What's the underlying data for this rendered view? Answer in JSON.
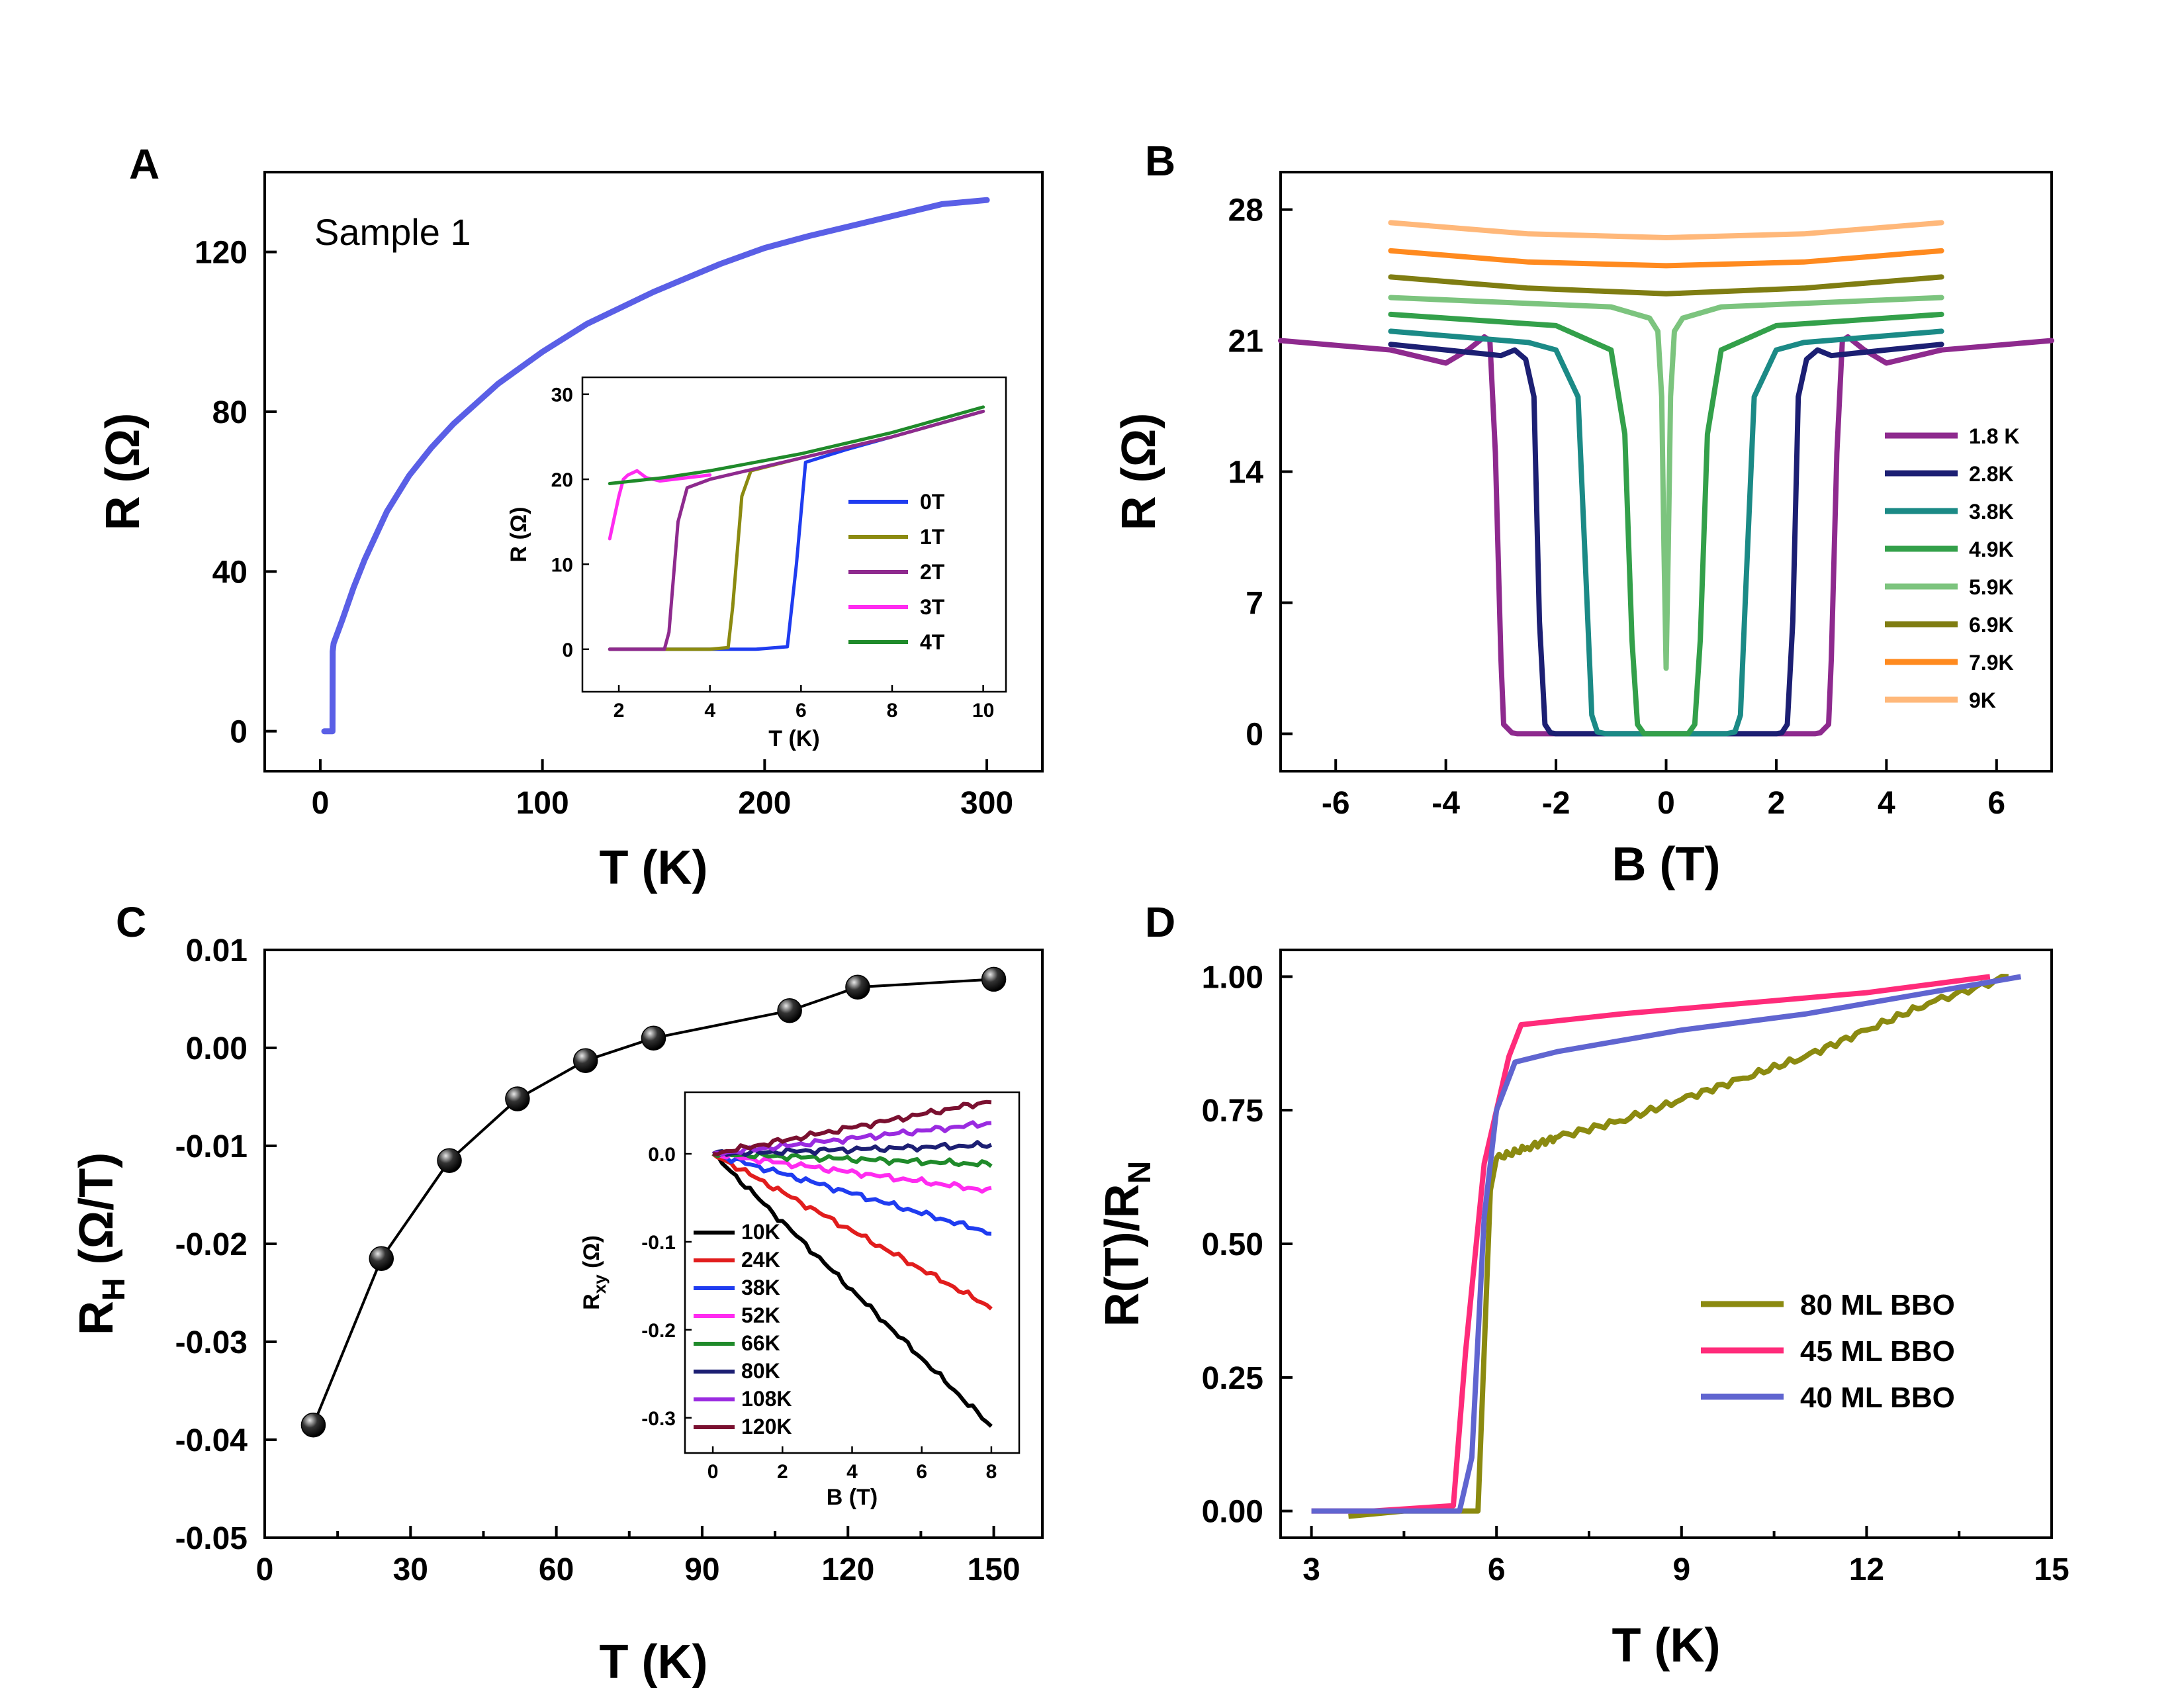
{
  "chart_data": [
    {
      "id": "A",
      "type": "line",
      "panel_label": "A",
      "annotation": "Sample 1",
      "xlabel": "T (K)",
      "ylabel": "R (Ω)",
      "xlim": [
        -25,
        325
      ],
      "ylim": [
        -10,
        140
      ],
      "xticks": [
        0,
        100,
        200,
        300
      ],
      "yticks": [
        0,
        40,
        80,
        120
      ],
      "series": [
        {
          "name": "Sample 1",
          "color": "#5a5fe6",
          "x": [
            1.8,
            5.5,
            5.6,
            6,
            10,
            15,
            20,
            30,
            40,
            50,
            60,
            80,
            100,
            120,
            150,
            180,
            200,
            220,
            250,
            280,
            300
          ],
          "y": [
            0,
            0,
            20,
            22,
            28,
            36,
            43,
            55,
            64,
            71,
            77,
            87,
            95,
            102,
            110,
            117,
            121,
            124,
            128,
            132,
            133
          ]
        }
      ],
      "inset": {
        "xlabel": "T (K)",
        "ylabel": "R (Ω)",
        "xlim": [
          1.2,
          10.5
        ],
        "ylim": [
          -5,
          32
        ],
        "xticks": [
          2,
          4,
          6,
          8,
          10
        ],
        "yticks": [
          0,
          10,
          20,
          30
        ],
        "series": [
          {
            "name": "0T",
            "color": "#1f3cf0",
            "x": [
              1.8,
              3,
              4,
              5,
              5.7,
              5.9,
              6.1,
              7,
              8,
              9,
              10
            ],
            "y": [
              0,
              0,
              0,
              0,
              0.3,
              10,
              22,
              23.5,
              25,
              26.5,
              28
            ]
          },
          {
            "name": "1T",
            "color": "#8b8a10",
            "x": [
              1.8,
              3,
              4,
              4.4,
              4.5,
              4.7,
              4.9,
              6,
              8,
              10
            ],
            "y": [
              0,
              0,
              0,
              0.2,
              5,
              18,
              21,
              22.5,
              25,
              28
            ]
          },
          {
            "name": "2T",
            "color": "#8e2a8e",
            "x": [
              1.8,
              2.5,
              3,
              3.1,
              3.3,
              3.5,
              4,
              6,
              8,
              10
            ],
            "y": [
              0,
              0,
              0,
              2,
              15,
              19,
              20,
              22.5,
              25,
              28
            ]
          },
          {
            "name": "3T",
            "color": "#ff2bf0",
            "x": [
              1.8,
              2.0,
              2.1,
              2.2,
              2.4,
              2.6,
              2.9,
              3.2,
              4
            ],
            "y": [
              13,
              18,
              20,
              20.5,
              21,
              20.2,
              19.8,
              20,
              20.5
            ]
          },
          {
            "name": "4T",
            "color": "#1f8a2a",
            "x": [
              1.8,
              3,
              4,
              6,
              8,
              10
            ],
            "y": [
              19.5,
              20.2,
              21,
              23,
              25.5,
              28.5
            ]
          }
        ]
      }
    },
    {
      "id": "B",
      "type": "line",
      "panel_label": "B",
      "xlabel": "B (T)",
      "ylabel": "R (Ω)",
      "xlim": [
        -7,
        7
      ],
      "ylim": [
        -2,
        30
      ],
      "xticks": [
        -6,
        -4,
        -2,
        0,
        2,
        4,
        6
      ],
      "yticks": [
        0,
        7,
        14,
        21,
        28
      ],
      "series": [
        {
          "name": "1.8 K",
          "color": "#8e2a8e",
          "x": [
            -7,
            -5,
            -4,
            -3.6,
            -3.3,
            -3.2,
            -3.1,
            -3.0,
            -2.95,
            -2.8,
            -2.7,
            2.7,
            2.8,
            2.95,
            3.0,
            3.1,
            3.2,
            3.3,
            3.6,
            4,
            5,
            7
          ],
          "y": [
            21.0,
            20.5,
            19.8,
            20.5,
            21.2,
            21.0,
            15,
            4,
            0.5,
            0.05,
            0,
            0,
            0.05,
            0.5,
            4,
            15,
            21.0,
            21.2,
            20.5,
            19.8,
            20.5,
            21.0
          ]
        },
        {
          "name": "2.8K",
          "color": "#1c1f73",
          "x": [
            -5,
            -3,
            -2.75,
            -2.55,
            -2.4,
            -2.3,
            -2.2,
            -2.1,
            -2.0,
            2.0,
            2.1,
            2.2,
            2.3,
            2.4,
            2.55,
            2.75,
            3,
            5
          ],
          "y": [
            20.8,
            20.2,
            20.5,
            20.0,
            18,
            6,
            0.5,
            0.05,
            0,
            0,
            0.05,
            0.5,
            6,
            18,
            20.0,
            20.5,
            20.2,
            20.8
          ]
        },
        {
          "name": "3.8K",
          "color": "#1b8a86",
          "x": [
            -5,
            -2.5,
            -2.0,
            -1.6,
            -1.45,
            -1.35,
            -1.25,
            -1.1,
            1.1,
            1.25,
            1.35,
            1.45,
            1.6,
            2.0,
            2.5,
            5
          ],
          "y": [
            21.5,
            20.9,
            20.5,
            18,
            8,
            1,
            0.1,
            0,
            0,
            0.1,
            1,
            8,
            18,
            20.5,
            20.9,
            21.5
          ]
        },
        {
          "name": "4.9K",
          "color": "#33a04a",
          "x": [
            -5,
            -2,
            -1.0,
            -0.75,
            -0.62,
            -0.52,
            -0.4,
            0.4,
            0.52,
            0.62,
            0.75,
            1.0,
            2,
            5
          ],
          "y": [
            22.4,
            21.8,
            20.5,
            16,
            5,
            0.5,
            0,
            0,
            0.5,
            5,
            16,
            20.5,
            21.8,
            22.4
          ]
        },
        {
          "name": "5.9K",
          "color": "#7cc47e",
          "x": [
            -5,
            -1,
            -0.3,
            -0.15,
            -0.08,
            -0.04,
            0,
            0.04,
            0.08,
            0.15,
            0.3,
            1,
            5
          ],
          "y": [
            23.3,
            22.8,
            22.2,
            21.5,
            18,
            10,
            3.5,
            10,
            18,
            21.5,
            22.2,
            22.8,
            23.3
          ]
        },
        {
          "name": "6.9K",
          "color": "#7f7d12",
          "x": [
            -5,
            -2.5,
            0,
            2.5,
            5
          ],
          "y": [
            24.4,
            23.8,
            23.5,
            23.8,
            24.4
          ]
        },
        {
          "name": "7.9K",
          "color": "#ff8a1f",
          "x": [
            -5,
            -2.5,
            0,
            2.5,
            5
          ],
          "y": [
            25.8,
            25.2,
            25.0,
            25.2,
            25.8
          ]
        },
        {
          "name": "9K",
          "color": "#ffb87a",
          "x": [
            -5,
            -2.5,
            0,
            2.5,
            5
          ],
          "y": [
            27.3,
            26.7,
            26.5,
            26.7,
            27.3
          ]
        }
      ]
    },
    {
      "id": "C",
      "type": "scatter",
      "panel_label": "C",
      "xlabel": "T (K)",
      "ylabel_main": "R",
      "ylabel_sub": "H",
      "ylabel_rest": " (Ω/T)",
      "xlim": [
        0,
        160
      ],
      "ylim": [
        -0.05,
        0.01
      ],
      "xticks": [
        0,
        30,
        60,
        90,
        120,
        150
      ],
      "yticks": [
        -0.05,
        -0.04,
        -0.03,
        -0.02,
        -0.01,
        0.0,
        0.01
      ],
      "ytick_labels": [
        "-0.05",
        "-0.04",
        "-0.03",
        "-0.02",
        "-0.01",
        "0.00",
        "0.01"
      ],
      "series": [
        {
          "name": "R_H",
          "color": "#000000",
          "x": [
            10,
            24,
            38,
            52,
            66,
            80,
            108,
            122,
            150
          ],
          "y": [
            -0.0385,
            -0.0215,
            -0.0115,
            -0.0052,
            -0.0013,
            0.001,
            0.0038,
            0.0062,
            0.007
          ]
        }
      ],
      "inset": {
        "xlabel": "B (T)",
        "ylabel_main": "R",
        "ylabel_sub": "xy",
        "ylabel_rest": " (Ω)",
        "xlim": [
          -0.8,
          8.8
        ],
        "ylim": [
          -0.34,
          0.07
        ],
        "xticks": [
          0,
          2,
          4,
          6,
          8
        ],
        "yticks": [
          -0.3,
          -0.2,
          -0.1,
          0.0
        ],
        "ytick_labels": [
          "-0.3",
          "-0.2",
          "-0.1",
          "0.0"
        ],
        "series": [
          {
            "name": "10K",
            "color": "#000000",
            "x": [
              0,
              8
            ],
            "y": [
              0,
              -0.31
            ]
          },
          {
            "name": "24K",
            "color": "#e11d1d",
            "x": [
              0,
              8
            ],
            "y": [
              0,
              -0.175
            ]
          },
          {
            "name": "38K",
            "color": "#1f3cf0",
            "x": [
              0,
              8
            ],
            "y": [
              0,
              -0.09
            ]
          },
          {
            "name": "52K",
            "color": "#ff2bf0",
            "x": [
              0,
              8
            ],
            "y": [
              0,
              -0.042
            ]
          },
          {
            "name": "66K",
            "color": "#1f8a2a",
            "x": [
              0,
              8
            ],
            "y": [
              0,
              -0.012
            ]
          },
          {
            "name": "80K",
            "color": "#1c1f73",
            "x": [
              0,
              8
            ],
            "y": [
              0,
              0.01
            ]
          },
          {
            "name": "108K",
            "color": "#9a2be0",
            "x": [
              0,
              8
            ],
            "y": [
              0,
              0.035
            ]
          },
          {
            "name": "120K",
            "color": "#7a1030",
            "x": [
              0,
              8
            ],
            "y": [
              0,
              0.06
            ]
          }
        ]
      }
    },
    {
      "id": "D",
      "type": "line",
      "panel_label": "D",
      "xlabel": "T (K)",
      "ylabel_main": "R(T)/R",
      "ylabel_sub": "N",
      "xlim": [
        2.5,
        15
      ],
      "ylim": [
        -0.05,
        1.05
      ],
      "xticks": [
        3,
        6,
        9,
        12,
        15
      ],
      "yticks": [
        0.0,
        0.25,
        0.5,
        0.75,
        1.0
      ],
      "ytick_labels": [
        "0.00",
        "0.25",
        "0.50",
        "0.75",
        "1.00"
      ],
      "series": [
        {
          "name": "80 ML BBO",
          "color": "#8b8a10",
          "x": [
            3.6,
            4.5,
            5.5,
            5.7,
            5.8,
            5.9,
            6.0,
            6.5,
            7,
            8,
            9,
            10,
            11,
            12,
            13,
            14.3
          ],
          "y": [
            -0.01,
            0,
            0,
            0.0,
            0.3,
            0.6,
            0.66,
            0.68,
            0.7,
            0.73,
            0.77,
            0.81,
            0.85,
            0.9,
            0.95,
            1.0
          ]
        },
        {
          "name": "45 ML BBO",
          "color": "#ff2b7a",
          "x": [
            3,
            4,
            5.3,
            5.5,
            5.8,
            6.2,
            6.4,
            8,
            10,
            12,
            14
          ],
          "y": [
            0,
            0,
            0.01,
            0.3,
            0.65,
            0.85,
            0.91,
            0.93,
            0.95,
            0.97,
            1.0
          ]
        },
        {
          "name": "40 ML BBO",
          "color": "#6065d0",
          "x": [
            3,
            4,
            5.4,
            5.6,
            5.8,
            6.0,
            6.3,
            7,
            9,
            11,
            13,
            14.5
          ],
          "y": [
            0,
            0,
            0,
            0.1,
            0.55,
            0.75,
            0.84,
            0.86,
            0.9,
            0.93,
            0.97,
            1.0
          ]
        }
      ]
    }
  ]
}
